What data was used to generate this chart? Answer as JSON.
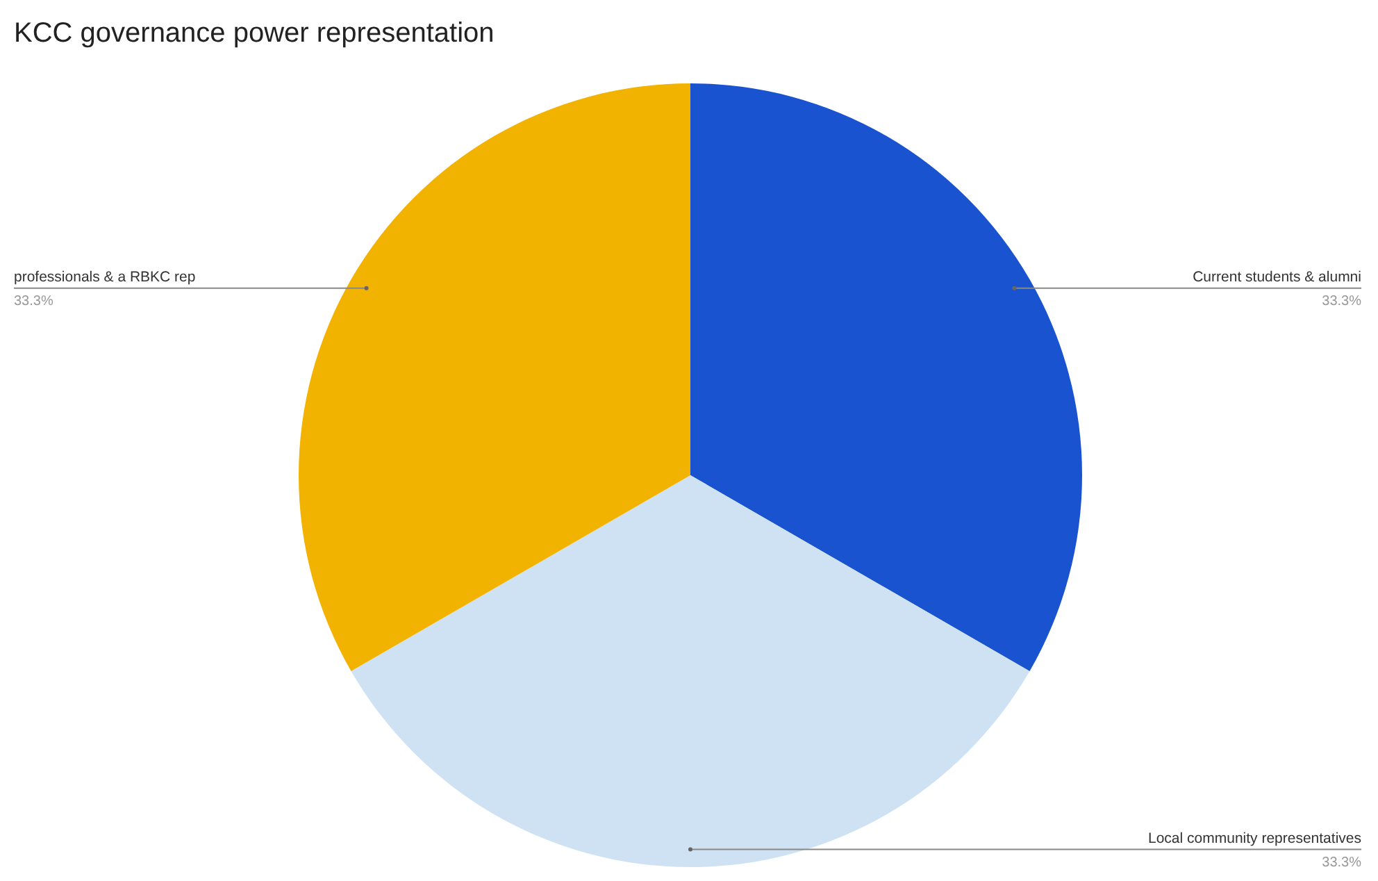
{
  "chart_data": {
    "type": "pie",
    "title": "KCC governance power representation",
    "categories": [
      "Current students & alumni",
      "Local community representatives",
      "professionals & a RBKC rep"
    ],
    "values": [
      33.3,
      33.3,
      33.3
    ],
    "value_labels": [
      "33.3%",
      "33.3%",
      "33.3%"
    ],
    "colors": [
      "#1a53d0",
      "#cfe2f3",
      "#f2b200"
    ]
  }
}
